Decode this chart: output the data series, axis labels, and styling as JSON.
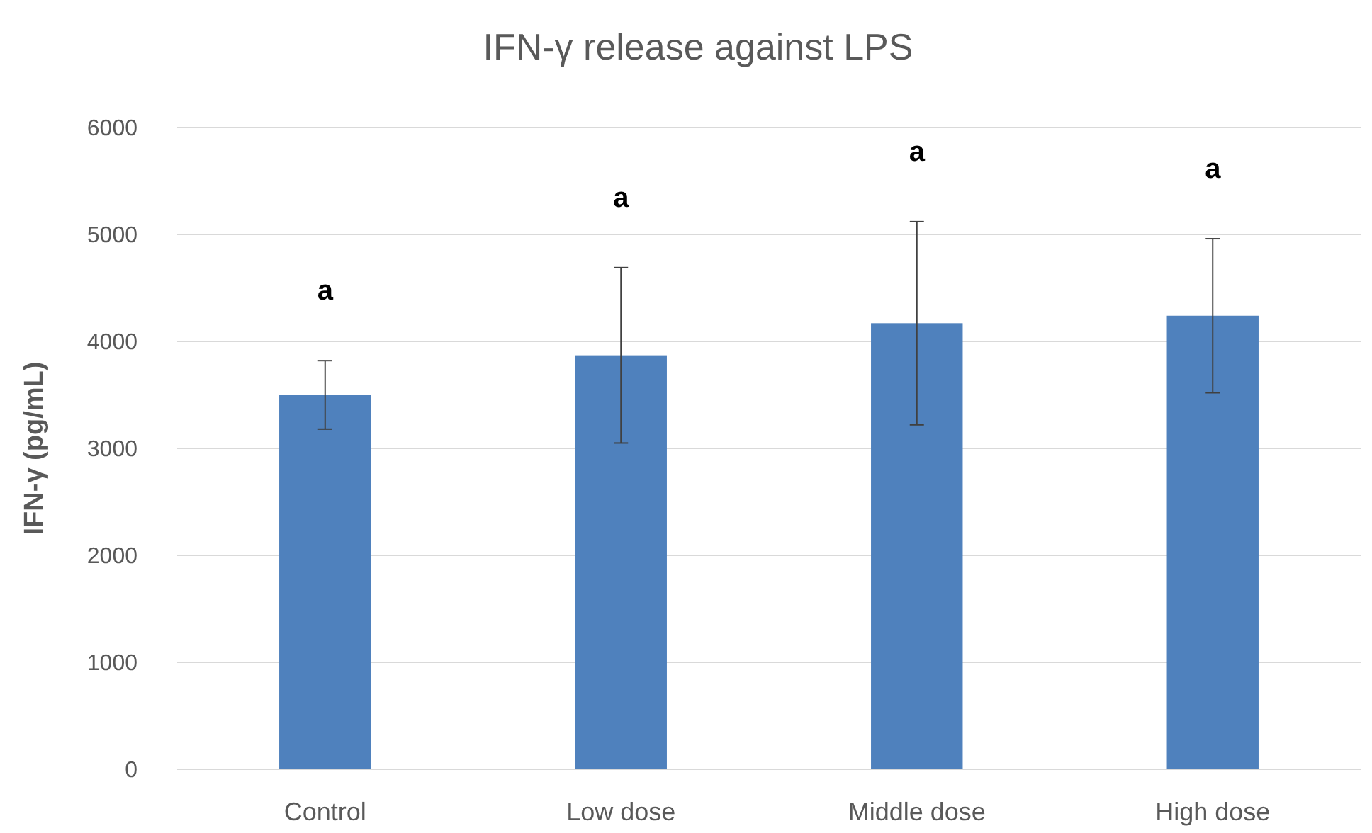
{
  "chart_data": {
    "type": "bar",
    "title": "IFN-γ release against LPS",
    "ylabel": "IFN-γ (pg/mL)",
    "categories": [
      "Control",
      "Low dose",
      "Middle dose",
      "High dose"
    ],
    "values": [
      3500,
      3870,
      4170,
      4240
    ],
    "errors": [
      320,
      820,
      950,
      720
    ],
    "color": "#4f81bd",
    "ylim": [
      0,
      6000
    ],
    "yticks": [
      0,
      1000,
      2000,
      3000,
      4000,
      5000,
      6000
    ],
    "grid": "y",
    "annotations": [
      "a",
      "a",
      "a",
      "a"
    ]
  }
}
